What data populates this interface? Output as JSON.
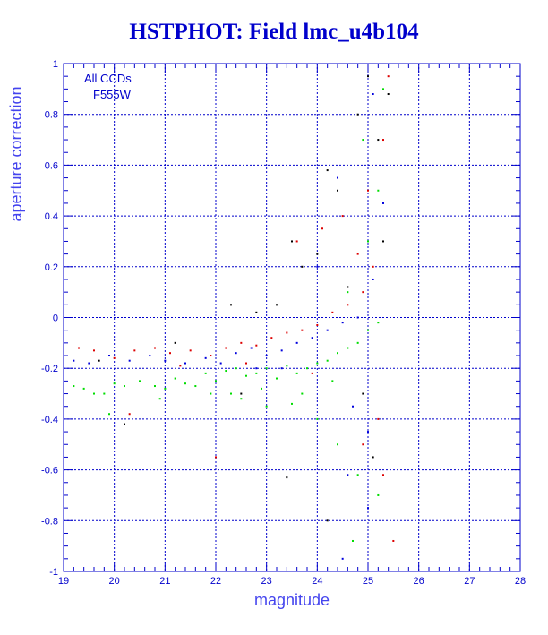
{
  "chart_data": {
    "type": "scatter",
    "title": "HSTPHOT: Field lmc_u4b104",
    "xlabel": "magnitude",
    "ylabel": "aperture correction",
    "xlim": [
      19,
      28
    ],
    "ylim": [
      -1,
      1
    ],
    "x_ticks": [
      "19",
      "20",
      "21",
      "22",
      "23",
      "24",
      "25",
      "26",
      "27",
      "28"
    ],
    "y_ticks": [
      "-1",
      "-0.8",
      "-0.6",
      "-0.4",
      "-0.2",
      "0",
      "0.2",
      "0.4",
      "0.6",
      "0.8",
      "1"
    ],
    "grid": true,
    "annotations": [
      "All CCDs",
      "F555W"
    ],
    "annotation_position": "top-left",
    "series": [
      {
        "color": "#00dd00",
        "points": [
          [
            19.2,
            -0.27
          ],
          [
            19.4,
            -0.28
          ],
          [
            19.6,
            -0.3
          ],
          [
            19.8,
            -0.3
          ],
          [
            20.0,
            -0.26
          ],
          [
            20.2,
            -0.27
          ],
          [
            20.5,
            -0.25
          ],
          [
            20.8,
            -0.27
          ],
          [
            21.0,
            -0.28
          ],
          [
            21.2,
            -0.24
          ],
          [
            21.4,
            -0.26
          ],
          [
            21.6,
            -0.27
          ],
          [
            21.8,
            -0.22
          ],
          [
            22.0,
            -0.25
          ],
          [
            22.2,
            -0.21
          ],
          [
            22.4,
            -0.2
          ],
          [
            22.6,
            -0.23
          ],
          [
            22.8,
            -0.22
          ],
          [
            23.0,
            -0.2
          ],
          [
            23.2,
            -0.24
          ],
          [
            23.4,
            -0.19
          ],
          [
            23.6,
            -0.22
          ],
          [
            23.8,
            -0.2
          ],
          [
            24.0,
            -0.18
          ],
          [
            24.2,
            -0.17
          ],
          [
            24.4,
            -0.14
          ],
          [
            24.6,
            -0.12
          ],
          [
            24.8,
            -0.1
          ],
          [
            25.0,
            -0.05
          ],
          [
            25.2,
            -0.02
          ],
          [
            22.5,
            -0.32
          ],
          [
            23.0,
            -0.35
          ],
          [
            23.5,
            -0.34
          ],
          [
            24.0,
            -0.4
          ],
          [
            24.4,
            -0.5
          ],
          [
            24.8,
            -0.62
          ],
          [
            25.2,
            -0.7
          ],
          [
            24.6,
            0.1
          ],
          [
            25.0,
            0.3
          ],
          [
            25.2,
            0.5
          ],
          [
            24.9,
            0.7
          ],
          [
            25.3,
            0.9
          ],
          [
            21.9,
            -0.3
          ],
          [
            22.3,
            -0.3
          ],
          [
            22.9,
            -0.28
          ],
          [
            23.7,
            -0.3
          ],
          [
            24.3,
            -0.25
          ],
          [
            20.9,
            -0.32
          ],
          [
            19.9,
            -0.38
          ],
          [
            24.7,
            -0.88
          ]
        ]
      },
      {
        "color": "#dd0000",
        "points": [
          [
            19.3,
            -0.12
          ],
          [
            19.6,
            -0.13
          ],
          [
            20.0,
            -0.16
          ],
          [
            20.4,
            -0.13
          ],
          [
            20.8,
            -0.12
          ],
          [
            21.1,
            -0.14
          ],
          [
            21.5,
            -0.13
          ],
          [
            21.9,
            -0.15
          ],
          [
            22.2,
            -0.12
          ],
          [
            22.5,
            -0.1
          ],
          [
            22.8,
            -0.11
          ],
          [
            23.1,
            -0.08
          ],
          [
            23.4,
            -0.06
          ],
          [
            23.7,
            -0.05
          ],
          [
            24.0,
            -0.03
          ],
          [
            24.3,
            0.02
          ],
          [
            24.6,
            0.05
          ],
          [
            24.9,
            0.1
          ],
          [
            25.1,
            0.2
          ],
          [
            23.6,
            0.3
          ],
          [
            24.1,
            0.35
          ],
          [
            24.5,
            0.4
          ],
          [
            24.8,
            0.25
          ],
          [
            25.0,
            0.5
          ],
          [
            25.3,
            0.7
          ],
          [
            25.4,
            0.95
          ],
          [
            25.2,
            -0.4
          ],
          [
            24.9,
            -0.5
          ],
          [
            25.3,
            -0.62
          ],
          [
            25.5,
            -0.88
          ],
          [
            22.0,
            -0.55
          ],
          [
            20.3,
            -0.38
          ],
          [
            23.9,
            -0.22
          ],
          [
            22.6,
            -0.18
          ],
          [
            21.3,
            -0.19
          ]
        ]
      },
      {
        "color": "#0000dd",
        "points": [
          [
            19.2,
            -0.17
          ],
          [
            19.5,
            -0.18
          ],
          [
            19.9,
            -0.15
          ],
          [
            20.3,
            -0.17
          ],
          [
            20.7,
            -0.15
          ],
          [
            21.0,
            -0.17
          ],
          [
            21.4,
            -0.18
          ],
          [
            21.8,
            -0.16
          ],
          [
            22.1,
            -0.18
          ],
          [
            22.4,
            -0.14
          ],
          [
            22.7,
            -0.12
          ],
          [
            23.0,
            -0.15
          ],
          [
            23.3,
            -0.13
          ],
          [
            23.6,
            -0.1
          ],
          [
            23.9,
            -0.08
          ],
          [
            24.2,
            -0.05
          ],
          [
            24.5,
            -0.02
          ],
          [
            24.8,
            0.0
          ],
          [
            25.1,
            0.15
          ],
          [
            25.3,
            0.45
          ],
          [
            25.1,
            0.88
          ],
          [
            24.4,
            0.55
          ],
          [
            24.0,
            0.2
          ],
          [
            24.7,
            -0.35
          ],
          [
            25.0,
            -0.45
          ],
          [
            24.6,
            -0.62
          ],
          [
            25.0,
            -0.75
          ],
          [
            24.5,
            -0.95
          ],
          [
            23.3,
            -0.2
          ],
          [
            22.8,
            -0.2
          ]
        ]
      },
      {
        "color": "#000000",
        "points": [
          [
            20.2,
            -0.42
          ],
          [
            19.7,
            -0.17
          ],
          [
            21.2,
            -0.1
          ],
          [
            22.3,
            0.05
          ],
          [
            22.8,
            0.02
          ],
          [
            23.2,
            0.05
          ],
          [
            23.5,
            0.3
          ],
          [
            23.7,
            0.2
          ],
          [
            24.0,
            0.25
          ],
          [
            24.2,
            0.58
          ],
          [
            24.4,
            0.5
          ],
          [
            24.6,
            0.12
          ],
          [
            24.8,
            0.8
          ],
          [
            25.0,
            0.95
          ],
          [
            25.2,
            0.7
          ],
          [
            25.4,
            0.88
          ],
          [
            25.3,
            0.3
          ],
          [
            24.9,
            -0.3
          ],
          [
            25.1,
            -0.55
          ],
          [
            23.4,
            -0.63
          ],
          [
            24.2,
            -0.8
          ],
          [
            22.5,
            -0.3
          ]
        ]
      }
    ]
  }
}
